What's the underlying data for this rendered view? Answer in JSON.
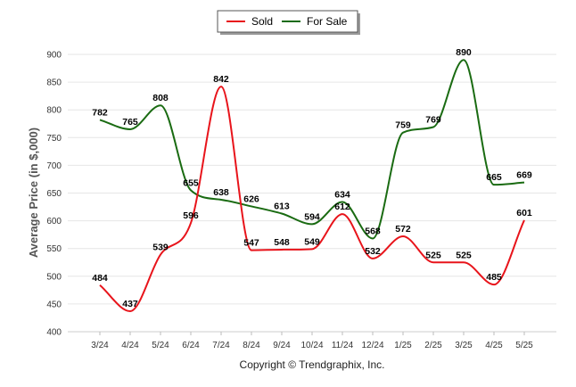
{
  "chart_data": {
    "type": "line",
    "categories": [
      "3/24",
      "4/24",
      "5/24",
      "6/24",
      "7/24",
      "8/24",
      "9/24",
      "10/24",
      "11/24",
      "12/24",
      "1/25",
      "2/25",
      "3/25",
      "4/25",
      "5/25"
    ],
    "series": [
      {
        "name": "Sold",
        "color": "#e8141b",
        "values": [
          484,
          437,
          539,
          596,
          842,
          547,
          548,
          549,
          612,
          532,
          572,
          525,
          525,
          485,
          601
        ]
      },
      {
        "name": "For Sale",
        "color": "#1a6b12",
        "values": [
          782,
          765,
          808,
          655,
          638,
          626,
          613,
          594,
          634,
          568,
          759,
          769,
          890,
          665,
          669
        ]
      }
    ],
    "ylabel": "Average Price (in $,000)",
    "ylim": [
      400,
      900
    ],
    "yticks": [
      400,
      450,
      500,
      550,
      600,
      650,
      700,
      750,
      800,
      850,
      900
    ],
    "legend_position": "top-center",
    "grid": true
  },
  "legend": {
    "sold_label": "Sold",
    "forsale_label": "For Sale"
  },
  "footer": {
    "copyright": "Copyright © Trendgraphix, Inc."
  }
}
